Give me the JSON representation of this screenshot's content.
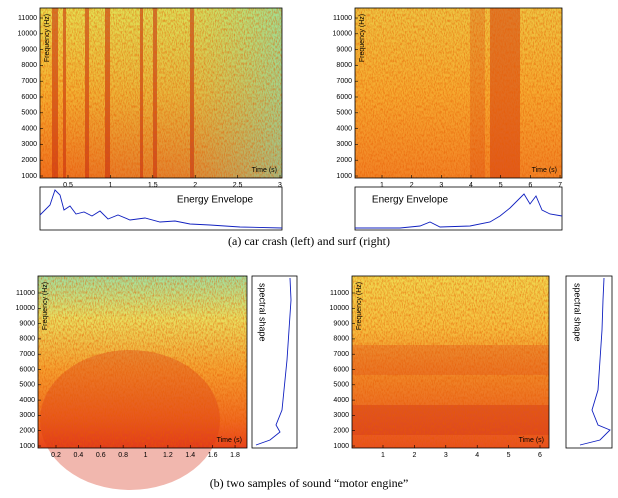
{
  "panels": [
    {
      "y_label": "Frequency (Hz)",
      "x_label": "Time (s)",
      "yticks": [
        1000,
        2000,
        3000,
        4000,
        5000,
        6000,
        7000,
        8000,
        9000,
        10000,
        11000
      ],
      "xticks": [
        0.5,
        1,
        1.5,
        2,
        2.5,
        3
      ],
      "inset_label": "Energy Envelope"
    },
    {
      "y_label": "Frequency (Hz)",
      "x_label": "Time (s)",
      "yticks": [
        1000,
        2000,
        3000,
        4000,
        5000,
        6000,
        7000,
        8000,
        9000,
        10000,
        11000
      ],
      "xticks": [
        1,
        2,
        3,
        4,
        5,
        6,
        7
      ],
      "inset_label": "Energy Envelope"
    },
    {
      "y_label": "Frequency (Hz)",
      "x_label": "Time (s)",
      "yticks": [
        1000,
        2000,
        3000,
        4000,
        5000,
        6000,
        7000,
        8000,
        9000,
        10000,
        11000
      ],
      "xticks": [
        0.2,
        0.4,
        0.6,
        0.8,
        1,
        1.2,
        1.4,
        1.6,
        1.8
      ],
      "inset_label": "spectral shape"
    },
    {
      "y_label": "Frequency (Hz)",
      "x_label": "Time (s)",
      "yticks": [
        1000,
        2000,
        3000,
        4000,
        5000,
        6000,
        7000,
        8000,
        9000,
        10000,
        11000
      ],
      "xticks": [
        1,
        2,
        3,
        4,
        5,
        6
      ],
      "inset_label": "spectral shape"
    }
  ],
  "captions": [
    "(a) car crash (left) and surf (right)",
    "(b) two samples of sound “motor engine”"
  ]
}
